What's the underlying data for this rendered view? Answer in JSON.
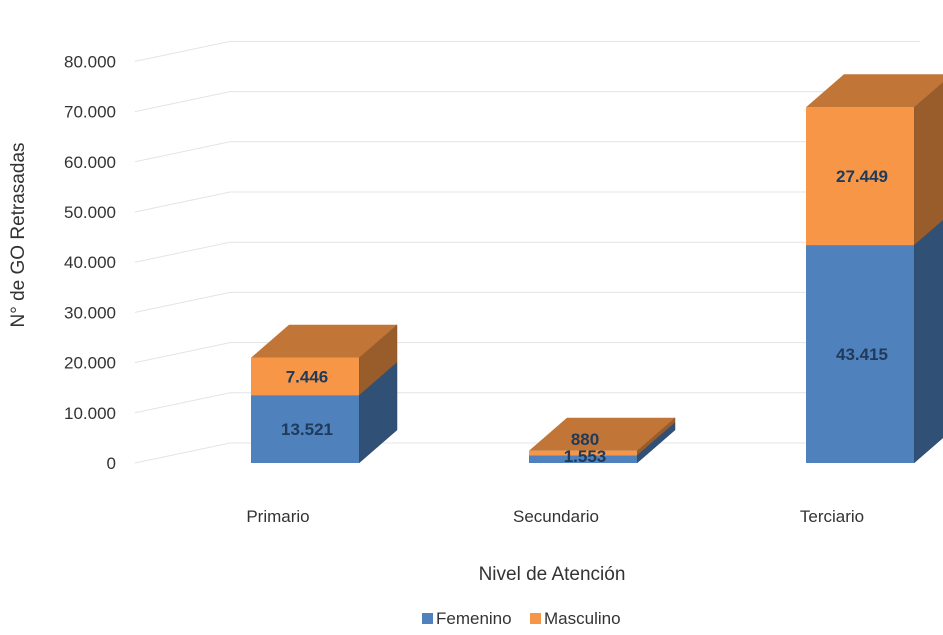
{
  "chart_data": {
    "type": "bar",
    "stacked": true,
    "style": "3d",
    "title": "",
    "xlabel": "Nivel de Atención",
    "ylabel": "N° de GO Retrasadas",
    "categories": [
      "Primario",
      "Secundario",
      "Terciario"
    ],
    "series": [
      {
        "name": "Femenino",
        "color": "#4f81bd",
        "values": [
          13521,
          1553,
          43415
        ],
        "labels": [
          "13.521",
          "1.553",
          "43.415"
        ]
      },
      {
        "name": "Masculino",
        "color": "#f79646",
        "values": [
          7446,
          880,
          27449
        ],
        "labels": [
          "7.446",
          "880",
          "27.449"
        ]
      }
    ],
    "ylim": [
      0,
      80000
    ],
    "yticks": [
      {
        "value": 0,
        "label": "0"
      },
      {
        "value": 10000,
        "label": "10.000"
      },
      {
        "value": 20000,
        "label": "20.000"
      },
      {
        "value": 30000,
        "label": "30.000"
      },
      {
        "value": 40000,
        "label": "40.000"
      },
      {
        "value": 50000,
        "label": "50.000"
      },
      {
        "value": 60000,
        "label": "60.000"
      },
      {
        "value": 70000,
        "label": "70.000"
      },
      {
        "value": 80000,
        "label": "80.000"
      }
    ],
    "grid": true,
    "legend": "bottom"
  }
}
